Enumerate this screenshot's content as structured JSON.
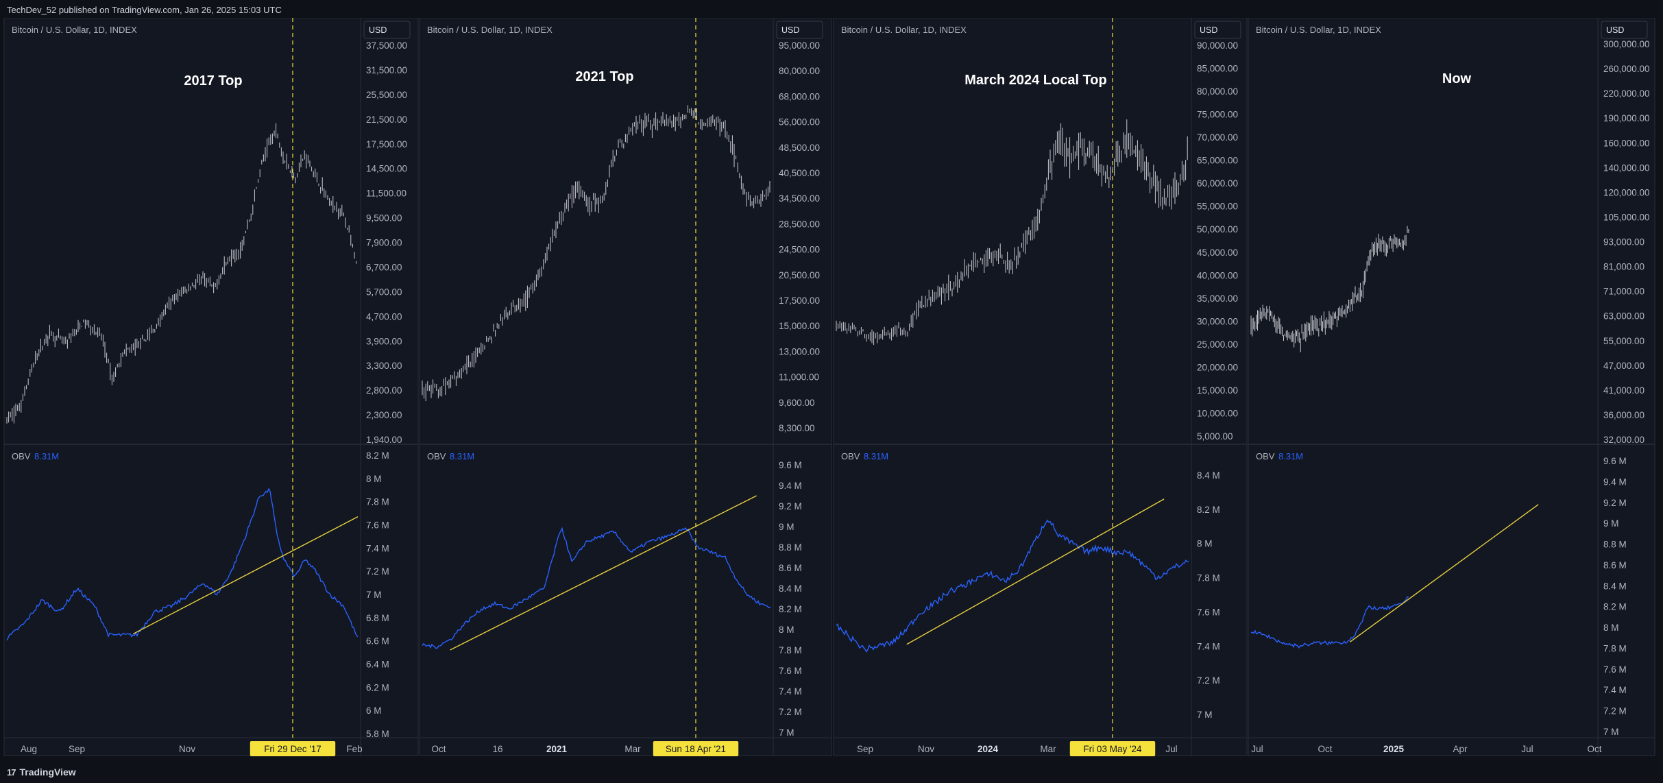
{
  "header": {
    "published_text": "TechDev_52 published on TradingView.com, Jan 26, 2025 15:03 UTC"
  },
  "footer": {
    "brand": "TradingView",
    "logo_mark": "17"
  },
  "colors": {
    "background": "#131722",
    "candle": "#c8cad0",
    "obv": "#2962ff",
    "trendline": "#e6cf3e",
    "marker": "#f5e13c"
  },
  "chart_data": [
    {
      "type": "candlestick",
      "title": "2017 Top",
      "symbol": "Bitcoin / U.S. Dollar, 1D, INDEX",
      "currency": "USD",
      "price_scale": "log",
      "price_ticks": [
        "37,500.00",
        "31,500.00",
        "25,500.00",
        "21,500.00",
        "17,500.00",
        "14,500.00",
        "11,500.00",
        "9,500.00",
        "7,900.00",
        "6,700.00",
        "5,700.00",
        "4,700.00",
        "3,900.00",
        "3,300.00",
        "2,800.00",
        "2,300.00",
        "1,940.00"
      ],
      "price_path": [
        [
          0,
          2250
        ],
        [
          0.04,
          2500
        ],
        [
          0.08,
          3500
        ],
        [
          0.12,
          4300
        ],
        [
          0.17,
          4000
        ],
        [
          0.22,
          4700
        ],
        [
          0.27,
          4200
        ],
        [
          0.3,
          3000
        ],
        [
          0.33,
          3700
        ],
        [
          0.38,
          4000
        ],
        [
          0.42,
          4400
        ],
        [
          0.47,
          5500
        ],
        [
          0.52,
          6100
        ],
        [
          0.56,
          6500
        ],
        [
          0.59,
          6000
        ],
        [
          0.63,
          7500
        ],
        [
          0.67,
          8200
        ],
        [
          0.7,
          11000
        ],
        [
          0.73,
          16000
        ],
        [
          0.765,
          19800
        ],
        [
          0.79,
          16000
        ],
        [
          0.82,
          13800
        ],
        [
          0.85,
          16500
        ],
        [
          0.88,
          14000
        ],
        [
          0.92,
          11500
        ],
        [
          0.96,
          10500
        ],
        [
          1.0,
          6800
        ]
      ],
      "obv_label": "OBV",
      "obv_value": "8.31M",
      "obv_ticks": [
        "8.2 M",
        "8 M",
        "7.8 M",
        "7.6 M",
        "7.4 M",
        "7.2 M",
        "7 M",
        "6.8 M",
        "6.6 M",
        "6.4 M",
        "6.2 M",
        "6 M",
        "5.8 M"
      ],
      "obv_path": [
        [
          0,
          6.62
        ],
        [
          0.05,
          6.75
        ],
        [
          0.1,
          6.95
        ],
        [
          0.15,
          6.85
        ],
        [
          0.2,
          7.05
        ],
        [
          0.25,
          6.9
        ],
        [
          0.29,
          6.65
        ],
        [
          0.33,
          6.65
        ],
        [
          0.37,
          6.65
        ],
        [
          0.42,
          6.85
        ],
        [
          0.47,
          6.9
        ],
        [
          0.52,
          7.0
        ],
        [
          0.56,
          7.1
        ],
        [
          0.6,
          7.0
        ],
        [
          0.64,
          7.2
        ],
        [
          0.68,
          7.5
        ],
        [
          0.72,
          7.85
        ],
        [
          0.75,
          7.9
        ],
        [
          0.77,
          7.5
        ],
        [
          0.79,
          7.3
        ],
        [
          0.82,
          7.15
        ],
        [
          0.85,
          7.3
        ],
        [
          0.88,
          7.2
        ],
        [
          0.92,
          7.0
        ],
        [
          0.96,
          6.9
        ],
        [
          1.0,
          6.62
        ]
      ],
      "trendline": [
        [
          0.36,
          6.66
        ],
        [
          1.0,
          7.67
        ]
      ],
      "x_ticks": [
        "Aug",
        "Sep",
        "Nov",
        "Feb"
      ],
      "marker_date": "Fri 29 Dec '17"
    },
    {
      "type": "candlestick",
      "title": "2021 Top",
      "symbol": "Bitcoin / U.S. Dollar, 1D, INDEX",
      "currency": "USD",
      "price_scale": "log",
      "price_ticks": [
        "95,000.00",
        "80,000.00",
        "68,000.00",
        "56,000.00",
        "48,500.00",
        "40,500.00",
        "34,500.00",
        "28,500.00",
        "24,500.00",
        "20,500.00",
        "17,500.00",
        "15,000.00",
        "13,000.00",
        "11,000.00",
        "9,600.00",
        "8,300.00"
      ],
      "price_path": [
        [
          0,
          10500
        ],
        [
          0.05,
          10600
        ],
        [
          0.1,
          11500
        ],
        [
          0.15,
          13000
        ],
        [
          0.2,
          15000
        ],
        [
          0.25,
          17500
        ],
        [
          0.3,
          19000
        ],
        [
          0.35,
          23500
        ],
        [
          0.38,
          29000
        ],
        [
          0.42,
          35000
        ],
        [
          0.45,
          39000
        ],
        [
          0.48,
          34000
        ],
        [
          0.52,
          36000
        ],
        [
          0.55,
          47000
        ],
        [
          0.58,
          52000
        ],
        [
          0.62,
          58000
        ],
        [
          0.66,
          57500
        ],
        [
          0.7,
          59000
        ],
        [
          0.74,
          58000
        ],
        [
          0.77,
          63500
        ],
        [
          0.8,
          57000
        ],
        [
          0.84,
          58000
        ],
        [
          0.87,
          56000
        ],
        [
          0.9,
          46000
        ],
        [
          0.93,
          36000
        ],
        [
          0.96,
          35000
        ],
        [
          1.0,
          38000
        ]
      ],
      "obv_label": "OBV",
      "obv_value": "8.31M",
      "obv_ticks": [
        "9.6 M",
        "9.4 M",
        "9.2 M",
        "9 M",
        "8.8 M",
        "8.6 M",
        "8.4 M",
        "8.2 M",
        "8 M",
        "7.8 M",
        "7.6 M",
        "7.4 M",
        "7.2 M",
        "7 M"
      ],
      "obv_path": [
        [
          0,
          7.85
        ],
        [
          0.04,
          7.83
        ],
        [
          0.08,
          7.9
        ],
        [
          0.12,
          8.05
        ],
        [
          0.17,
          8.2
        ],
        [
          0.21,
          8.25
        ],
        [
          0.25,
          8.2
        ],
        [
          0.3,
          8.3
        ],
        [
          0.35,
          8.4
        ],
        [
          0.4,
          9.0
        ],
        [
          0.43,
          8.65
        ],
        [
          0.47,
          8.85
        ],
        [
          0.51,
          8.9
        ],
        [
          0.55,
          8.95
        ],
        [
          0.6,
          8.75
        ],
        [
          0.65,
          8.85
        ],
        [
          0.7,
          8.9
        ],
        [
          0.76,
          8.98
        ],
        [
          0.79,
          8.8
        ],
        [
          0.83,
          8.75
        ],
        [
          0.87,
          8.7
        ],
        [
          0.9,
          8.5
        ],
        [
          0.93,
          8.35
        ],
        [
          0.97,
          8.25
        ],
        [
          1.0,
          8.22
        ]
      ],
      "trendline": [
        [
          0.08,
          7.8
        ],
        [
          0.96,
          9.3
        ]
      ],
      "x_ticks": [
        "Oct",
        "16",
        "2021",
        "Mar"
      ],
      "marker_date": "Sun 18 Apr '21"
    },
    {
      "type": "candlestick",
      "title": "March 2024 Local Top",
      "symbol": "Bitcoin / U.S. Dollar, 1D, INDEX",
      "currency": "USD",
      "price_scale": "log",
      "price_ticks": [
        "90,000.00",
        "85,000.00",
        "80,000.00",
        "75,000.00",
        "70,000.00",
        "65,000.00",
        "60,000.00",
        "55,000.00",
        "50,000.00",
        "45,000.00",
        "40,000.00",
        "35,000.00",
        "30,000.00",
        "25,000.00",
        "20,000.00",
        "15,000.00",
        "10,000.00",
        "5,000.00"
      ],
      "price_path": [
        [
          0,
          29000
        ],
        [
          0.05,
          28500
        ],
        [
          0.1,
          26500
        ],
        [
          0.15,
          27000
        ],
        [
          0.2,
          28000
        ],
        [
          0.24,
          34000
        ],
        [
          0.28,
          35500
        ],
        [
          0.33,
          37500
        ],
        [
          0.38,
          42000
        ],
        [
          0.42,
          43500
        ],
        [
          0.46,
          44500
        ],
        [
          0.5,
          42000
        ],
        [
          0.54,
          48000
        ],
        [
          0.57,
          51000
        ],
        [
          0.6,
          62000
        ],
        [
          0.63,
          70000
        ],
        [
          0.66,
          66000
        ],
        [
          0.7,
          68000
        ],
        [
          0.74,
          64000
        ],
        [
          0.78,
          61000
        ],
        [
          0.82,
          69000
        ],
        [
          0.86,
          66000
        ],
        [
          0.9,
          60000
        ],
        [
          0.93,
          57000
        ],
        [
          0.96,
          58000
        ],
        [
          1.0,
          65000
        ]
      ],
      "obv_label": "OBV",
      "obv_value": "8.31M",
      "obv_ticks": [
        "8.4 M",
        "8.2 M",
        "8 M",
        "7.8 M",
        "7.6 M",
        "7.4 M",
        "7.2 M",
        "7 M"
      ],
      "obv_path": [
        [
          0,
          7.52
        ],
        [
          0.04,
          7.45
        ],
        [
          0.08,
          7.38
        ],
        [
          0.12,
          7.4
        ],
        [
          0.16,
          7.42
        ],
        [
          0.2,
          7.5
        ],
        [
          0.24,
          7.6
        ],
        [
          0.28,
          7.65
        ],
        [
          0.32,
          7.72
        ],
        [
          0.36,
          7.75
        ],
        [
          0.4,
          7.8
        ],
        [
          0.44,
          7.82
        ],
        [
          0.48,
          7.78
        ],
        [
          0.52,
          7.85
        ],
        [
          0.56,
          8.0
        ],
        [
          0.6,
          8.15
        ],
        [
          0.63,
          8.05
        ],
        [
          0.67,
          8.0
        ],
        [
          0.71,
          7.95
        ],
        [
          0.75,
          7.98
        ],
        [
          0.79,
          7.95
        ],
        [
          0.83,
          7.95
        ],
        [
          0.87,
          7.88
        ],
        [
          0.91,
          7.8
        ],
        [
          0.95,
          7.85
        ],
        [
          1.0,
          7.9
        ]
      ],
      "trendline": [
        [
          0.2,
          7.41
        ],
        [
          0.93,
          8.26
        ]
      ],
      "x_ticks": [
        "Sep",
        "Nov",
        "2024",
        "Mar",
        "Jul"
      ],
      "marker_date": "Fri 03 May '24"
    },
    {
      "type": "candlestick",
      "title": "Now",
      "symbol": "Bitcoin / U.S. Dollar, 1D, INDEX",
      "currency": "USD",
      "price_scale": "log",
      "price_ticks": [
        "300,000.00",
        "260,000.00",
        "220,000.00",
        "190,000.00",
        "160,000.00",
        "140,000.00",
        "120,000.00",
        "105,000.00",
        "93,000.00",
        "81,000.00",
        "71,000.00",
        "63,000.00",
        "55,000.00",
        "47,000.00",
        "41,000.00",
        "36,000.00",
        "32,000.00"
      ],
      "price_path": [
        [
          0,
          61000
        ],
        [
          0.1,
          66000
        ],
        [
          0.2,
          58000
        ],
        [
          0.3,
          57000
        ],
        [
          0.4,
          61000
        ],
        [
          0.5,
          63000
        ],
        [
          0.6,
          67000
        ],
        [
          0.7,
          75000
        ],
        [
          0.75,
          91000
        ],
        [
          0.8,
          97000
        ],
        [
          0.85,
          95000
        ],
        [
          0.9,
          98000
        ],
        [
          0.95,
          95000
        ],
        [
          1.0,
          104000
        ]
      ],
      "obv_label": "OBV",
      "obv_value": "8.31M",
      "obv_ticks": [
        "9.6 M",
        "9.4 M",
        "9.2 M",
        "9 M",
        "8.8 M",
        "8.6 M",
        "8.4 M",
        "8.2 M",
        "8 M",
        "7.8 M",
        "7.6 M",
        "7.4 M",
        "7.2 M",
        "7 M"
      ],
      "obv_path": [
        [
          0,
          7.96
        ],
        [
          0.1,
          7.92
        ],
        [
          0.2,
          7.85
        ],
        [
          0.3,
          7.82
        ],
        [
          0.4,
          7.85
        ],
        [
          0.5,
          7.85
        ],
        [
          0.6,
          7.86
        ],
        [
          0.65,
          7.92
        ],
        [
          0.7,
          8.05
        ],
        [
          0.74,
          8.2
        ],
        [
          0.8,
          8.18
        ],
        [
          0.85,
          8.18
        ],
        [
          0.9,
          8.2
        ],
        [
          0.95,
          8.22
        ],
        [
          1.0,
          8.31
        ]
      ],
      "trendline": [
        [
          "2024-11-01",
          7.86
        ],
        [
          "2025-07-20",
          9.18
        ]
      ],
      "x_ticks": [
        "Jul",
        "Oct",
        "2025",
        "Apr",
        "Jul",
        "Oct"
      ]
    }
  ]
}
